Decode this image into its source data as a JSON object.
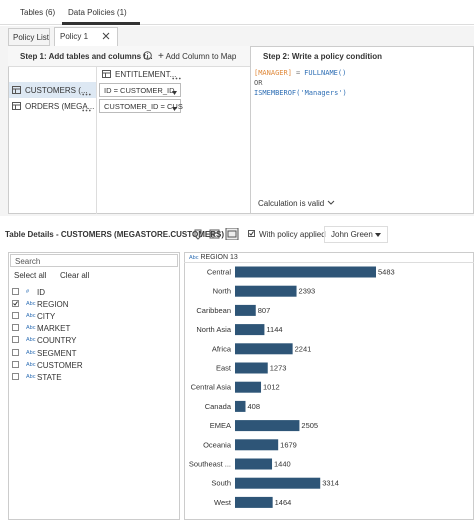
{
  "tabs": [
    "Tables (6)",
    "Data Policies (1)"
  ],
  "policy_tabs": [
    "Policy List",
    "Policy 1"
  ],
  "step1": {
    "title": "Step 1: Add tables and columns t...",
    "add_button": "Add Column to Map",
    "tables": [
      {
        "name": "ENTITLEMENT..."
      },
      {
        "name": "CUSTOMERS (...",
        "mapping": "ID = CUSTOMER_ID"
      },
      {
        "name": "ORDERS (MEGA...",
        "mapping": "CUSTOMER_ID = CUS"
      }
    ]
  },
  "step2": {
    "title": "Step 2: Write a policy condition",
    "code": [
      [
        {
          "text": "[MANAGER]",
          "color": "#e08a3c"
        },
        {
          "text": "=",
          "color": "#777777"
        },
        {
          "text": "FULLNAME()",
          "color": "#2f6fb5"
        }
      ],
      [
        {
          "text": "OR",
          "color": "#555555"
        }
      ],
      [
        {
          "text": "ISMEMBEROF('Managers')",
          "color": "#2f6fb5"
        }
      ]
    ],
    "status": "Calculation is valid"
  },
  "details": {
    "title": "Table Details - CUSTOMERS (MEGASTORE.CUSTOMERS)",
    "with_policy": "With policy applied",
    "user": "John Green",
    "search": "Search",
    "select_all": "Select all",
    "clear_all": "Clear all",
    "fields": [
      {
        "type": "#",
        "name": "ID",
        "checked": false
      },
      {
        "type": "Abc",
        "name": "REGION",
        "checked": true
      },
      {
        "type": "Abc",
        "name": "CITY",
        "checked": false
      },
      {
        "type": "Abc",
        "name": "MARKET",
        "checked": false
      },
      {
        "type": "Abc",
        "name": "COUNTRY",
        "checked": false
      },
      {
        "type": "Abc",
        "name": "SEGMENT",
        "checked": false
      },
      {
        "type": "Abc",
        "name": "CUSTOMER",
        "checked": false
      },
      {
        "type": "Abc",
        "name": "STATE",
        "checked": false
      }
    ],
    "selected": {
      "type": "Abc",
      "name": "REGION",
      "count": 13
    }
  },
  "chart_data": {
    "type": "bar",
    "orientation": "horizontal",
    "color": "#2e5577",
    "categories": [
      "Central",
      "North",
      "Caribbean",
      "North Asia",
      "Africa",
      "East",
      "Central Asia",
      "Canada",
      "EMEA",
      "Oceania",
      "Southeast ...",
      "South",
      "West"
    ],
    "values": [
      5483,
      2393,
      807,
      1144,
      2241,
      1273,
      1012,
      408,
      2505,
      1679,
      1440,
      3314,
      1464
    ]
  }
}
